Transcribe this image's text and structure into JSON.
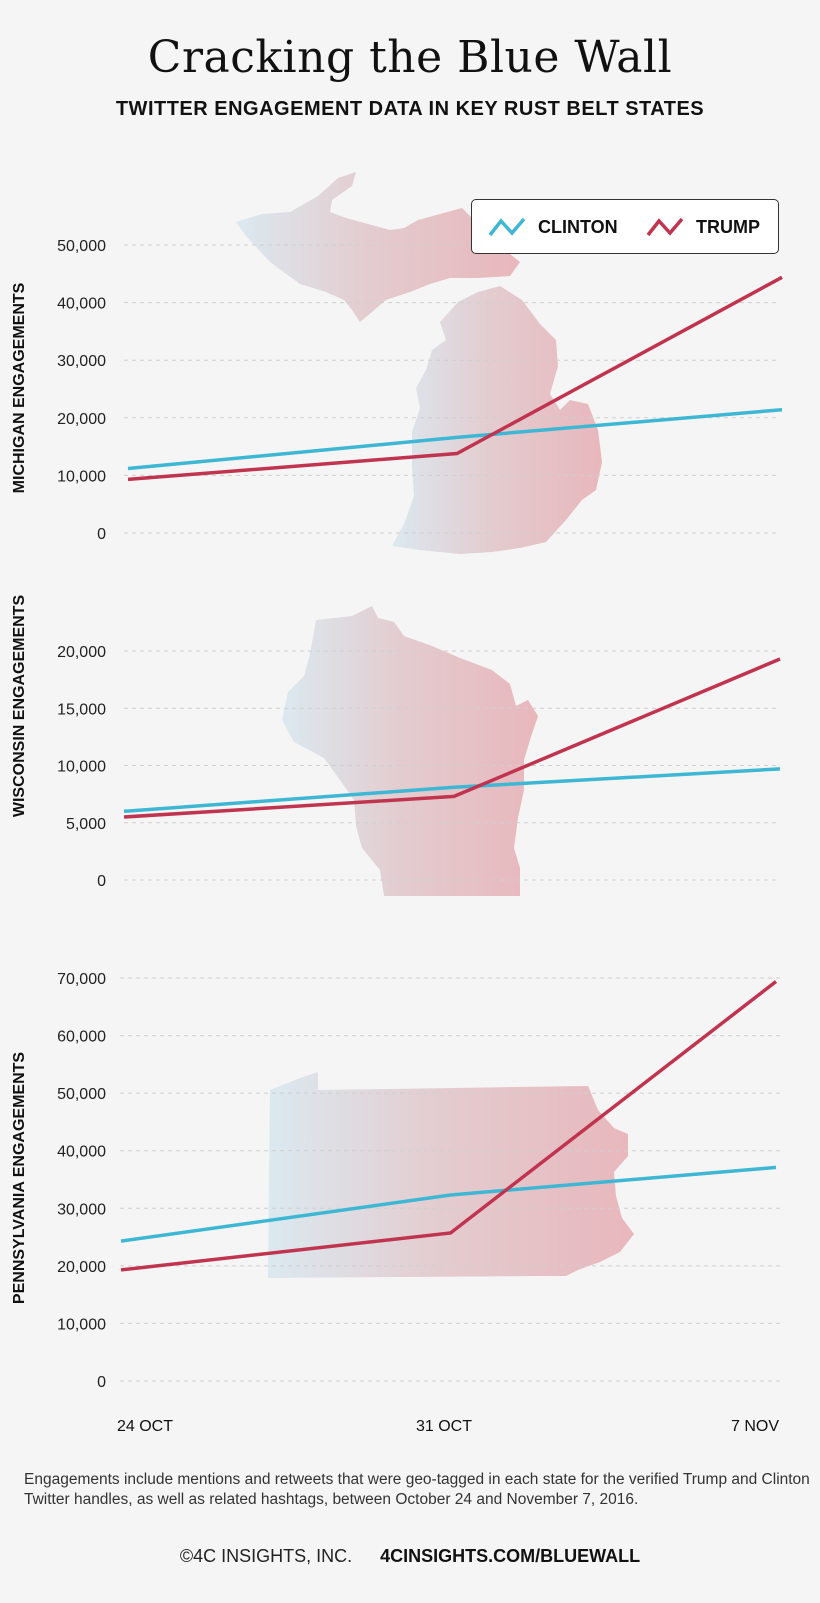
{
  "title": "Cracking the Blue Wall",
  "subtitle": "TWITTER ENGAGEMENT DATA IN KEY RUST BELT STATES",
  "legend": [
    {
      "label": "CLINTON",
      "color": "#3db7d4"
    },
    {
      "label": "TRUMP",
      "color": "#c0344f"
    }
  ],
  "footnote": "Engagements include mentions and retweets that were geo-tagged in each state for the verified Trump and Clinton Twitter handles, as well as related hashtags, between October 24 and November 7, 2016.",
  "credit": {
    "company": "©4C INSIGHTS, INC.",
    "url": "4CINSIGHTS.COM/BLUEWALL"
  },
  "colors": {
    "clinton": "#3db7d4",
    "trump": "#c0344f",
    "map_left": "#dbe9f0",
    "map_right": "#e8b9be"
  },
  "chart_data": [
    {
      "type": "line",
      "ylabel": "MICHIGAN ENGAGEMENTS",
      "x": [
        "24 OCT",
        "31 OCT",
        "7 NOV"
      ],
      "ylim": [
        0,
        50000
      ],
      "yticks": [
        0,
        10000,
        20000,
        30000,
        40000,
        50000
      ],
      "ytick_labels": [
        "0",
        "10,000",
        "20,000",
        "30,000",
        "40,000",
        "50,000"
      ],
      "grid": true,
      "background_map": "michigan-map",
      "series": [
        {
          "name": "CLINTON",
          "values": [
            11200,
            16600,
            21400
          ]
        },
        {
          "name": "TRUMP",
          "values": [
            9300,
            13800,
            44400
          ]
        }
      ]
    },
    {
      "type": "line",
      "ylabel": "WISCONSIN ENGAGEMENTS",
      "x": [
        "24 OCT",
        "31 OCT",
        "7 NOV"
      ],
      "ylim": [
        0,
        20000
      ],
      "yticks": [
        0,
        5000,
        10000,
        15000,
        20000
      ],
      "ytick_labels": [
        "0",
        "5,000",
        "10,000",
        "15,000",
        "20,000"
      ],
      "grid": true,
      "background_map": "wisconsin-map",
      "series": [
        {
          "name": "CLINTON",
          "values": [
            6000,
            8100,
            9700
          ]
        },
        {
          "name": "TRUMP",
          "values": [
            5500,
            7300,
            19300
          ]
        }
      ]
    },
    {
      "type": "line",
      "ylabel": "PENNSYLVANIA ENGAGEMENTS",
      "x": [
        "24 OCT",
        "31 OCT",
        "7 NOV"
      ],
      "ylim": [
        0,
        70000
      ],
      "yticks": [
        0,
        10000,
        20000,
        30000,
        40000,
        50000,
        60000,
        70000
      ],
      "ytick_labels": [
        "0",
        "10,000",
        "20,000",
        "30,000",
        "40,000",
        "50,000",
        "60,000",
        "70,000"
      ],
      "grid": true,
      "background_map": "pennsylvania-map",
      "series": [
        {
          "name": "CLINTON",
          "values": [
            24300,
            32300,
            37100
          ]
        },
        {
          "name": "TRUMP",
          "values": [
            19300,
            25700,
            69400
          ]
        }
      ]
    }
  ]
}
